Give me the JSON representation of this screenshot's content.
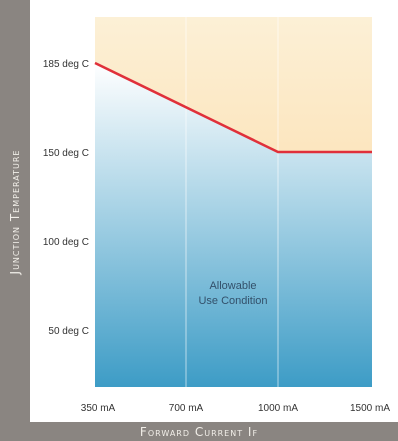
{
  "chart_data": {
    "type": "line",
    "xlabel": "Forward Current If",
    "ylabel": "Junction Temperature",
    "x_tick_labels": [
      "350 mA",
      "700 mA",
      "1000 mA",
      "1500 mA"
    ],
    "y_ticks": [
      {
        "value": 185,
        "label": "185 deg C"
      },
      {
        "value": 150,
        "label": "150 deg C"
      },
      {
        "value": 100,
        "label": "100 deg C"
      },
      {
        "value": 50,
        "label": "50 deg C"
      }
    ],
    "xlim": [
      350,
      1500
    ],
    "ylim": [
      0,
      220
    ],
    "series": [
      {
        "values": [
          {
            "x": 350,
            "y": 185
          },
          {
            "x": 1000,
            "y": 150
          },
          {
            "x": 1500,
            "y": 150
          }
        ]
      }
    ],
    "annotation": "Allowable Use Condition",
    "grid": true,
    "colors": {
      "limit_line": "#e0303a",
      "allowable_top": "#ffffff",
      "allowable_bottom": "#3d9cc6",
      "above_top": "#fcf0d6",
      "above_bottom": "#fbd497",
      "frame": "#8a8581"
    }
  }
}
